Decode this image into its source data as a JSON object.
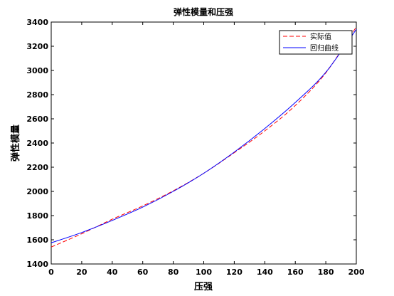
{
  "chart_data": {
    "type": "line",
    "title": "弹性模量和压强",
    "xlabel": "压强",
    "ylabel": "弹性模量",
    "xlim": [
      0,
      200
    ],
    "ylim": [
      1400,
      3400
    ],
    "xticks": [
      0,
      20,
      40,
      60,
      80,
      100,
      120,
      140,
      160,
      180,
      200
    ],
    "yticks": [
      1400,
      1600,
      1800,
      2000,
      2200,
      2400,
      2600,
      2800,
      3000,
      3200,
      3400
    ],
    "grid": false,
    "legend_position": "top-right",
    "series": [
      {
        "name": "实际值",
        "style": "dashed",
        "color": "#ff0000",
        "x": [
          0,
          20,
          40,
          60,
          80,
          100,
          120,
          140,
          160,
          180,
          200
        ],
        "y": [
          1540,
          1650,
          1770,
          1880,
          2005,
          2150,
          2320,
          2500,
          2710,
          2980,
          3360
        ]
      },
      {
        "name": "回归曲线",
        "style": "solid",
        "color": "#0000ff",
        "x": [
          0,
          20,
          40,
          60,
          80,
          100,
          120,
          140,
          160,
          180,
          200
        ],
        "y": [
          1575,
          1660,
          1760,
          1870,
          2000,
          2150,
          2325,
          2520,
          2735,
          2985,
          3340
        ]
      }
    ]
  }
}
